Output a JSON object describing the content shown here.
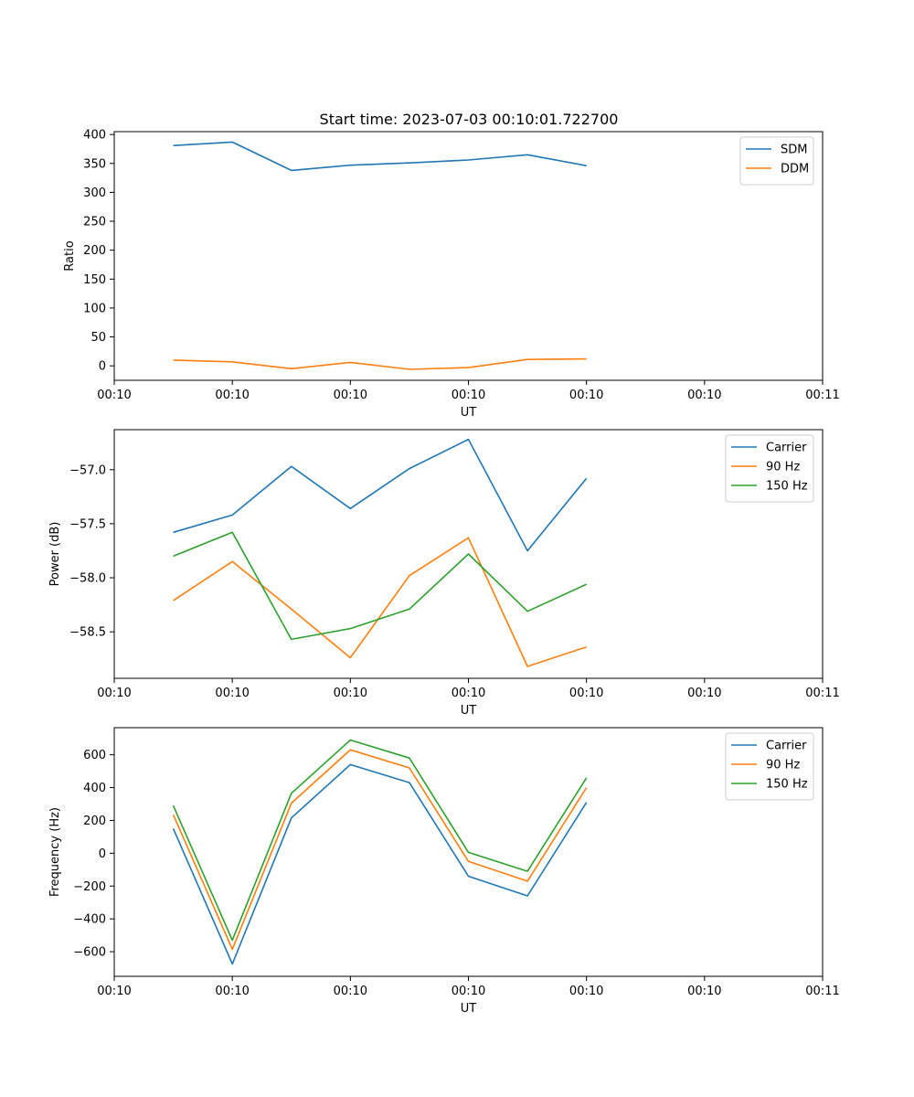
{
  "figure_title": "Start time: 2023-07-03 00:10:01.722700",
  "colors": {
    "blue": "#1f77b4",
    "orange": "#ff7f0e",
    "green": "#2ca02c"
  },
  "chart_data": [
    {
      "type": "line",
      "title": "Start time: 2023-07-03 00:10:01.722700",
      "xlabel": "UT",
      "ylabel": "Ratio",
      "xlim": [
        0,
        12
      ],
      "ylim": [
        -25,
        405
      ],
      "x": [
        1,
        2,
        3,
        4,
        5,
        6,
        7,
        8
      ],
      "xticks": [
        0,
        2,
        4,
        6,
        8,
        10,
        12
      ],
      "xtick_labels": [
        "00:10",
        "00:10",
        "00:10",
        "00:10",
        "00:10",
        "00:10",
        "00:11"
      ],
      "yticks": [
        0,
        50,
        100,
        150,
        200,
        250,
        300,
        350,
        400
      ],
      "ytick_labels": [
        "0",
        "50",
        "100",
        "150",
        "200",
        "250",
        "300",
        "350",
        "400"
      ],
      "legend_position": "upper-right",
      "series": [
        {
          "name": "SDM",
          "color": "#1f77b4",
          "values": [
            381,
            387,
            338,
            347,
            351,
            356,
            365,
            346
          ]
        },
        {
          "name": "DDM",
          "color": "#ff7f0e",
          "values": [
            10,
            7,
            -5,
            6,
            -6,
            -3,
            11,
            12
          ]
        }
      ]
    },
    {
      "type": "line",
      "xlabel": "UT",
      "ylabel": "Power (dB)",
      "xlim": [
        0,
        12
      ],
      "ylim": [
        -58.93,
        -56.63
      ],
      "x": [
        1,
        2,
        3,
        4,
        5,
        6,
        7,
        8
      ],
      "xticks": [
        0,
        2,
        4,
        6,
        8,
        10,
        12
      ],
      "xtick_labels": [
        "00:10",
        "00:10",
        "00:10",
        "00:10",
        "00:10",
        "00:10",
        "00:11"
      ],
      "yticks": [
        -58.5,
        -58.0,
        -57.5,
        -57.0
      ],
      "ytick_labels": [
        "−58.5",
        "−58.0",
        "−57.5",
        "−57.0"
      ],
      "legend_position": "upper-right",
      "series": [
        {
          "name": "Carrier",
          "color": "#1f77b4",
          "values": [
            -57.58,
            -57.42,
            -56.97,
            -57.36,
            -56.99,
            -56.72,
            -57.75,
            -57.08
          ]
        },
        {
          "name": "90 Hz",
          "color": "#ff7f0e",
          "values": [
            -58.21,
            -57.85,
            -58.29,
            -58.74,
            -57.98,
            -57.63,
            -58.82,
            -58.64
          ]
        },
        {
          "name": "150 Hz",
          "color": "#2ca02c",
          "values": [
            -57.8,
            -57.58,
            -58.57,
            -58.47,
            -58.29,
            -57.78,
            -58.31,
            -58.06
          ]
        }
      ]
    },
    {
      "type": "line",
      "xlabel": "UT",
      "ylabel": "Frequency (Hz)",
      "xlim": [
        0,
        12
      ],
      "ylim": [
        -750,
        765
      ],
      "x": [
        1,
        2,
        3,
        4,
        5,
        6,
        7,
        8
      ],
      "xticks": [
        0,
        2,
        4,
        6,
        8,
        10,
        12
      ],
      "xtick_labels": [
        "00:10",
        "00:10",
        "00:10",
        "00:10",
        "00:10",
        "00:10",
        "00:11"
      ],
      "yticks": [
        -600,
        -400,
        -200,
        0,
        200,
        400,
        600
      ],
      "ytick_labels": [
        "−600",
        "−400",
        "−200",
        "0",
        "200",
        "400",
        "600"
      ],
      "legend_position": "upper-right",
      "series": [
        {
          "name": "Carrier",
          "color": "#1f77b4",
          "values": [
            150,
            -675,
            215,
            540,
            430,
            -140,
            -260,
            310
          ]
        },
        {
          "name": "90 Hz",
          "color": "#ff7f0e",
          "values": [
            235,
            -585,
            305,
            630,
            520,
            -50,
            -170,
            400
          ]
        },
        {
          "name": "150 Hz",
          "color": "#2ca02c",
          "values": [
            290,
            -530,
            365,
            690,
            580,
            5,
            -110,
            460
          ]
        }
      ]
    }
  ]
}
